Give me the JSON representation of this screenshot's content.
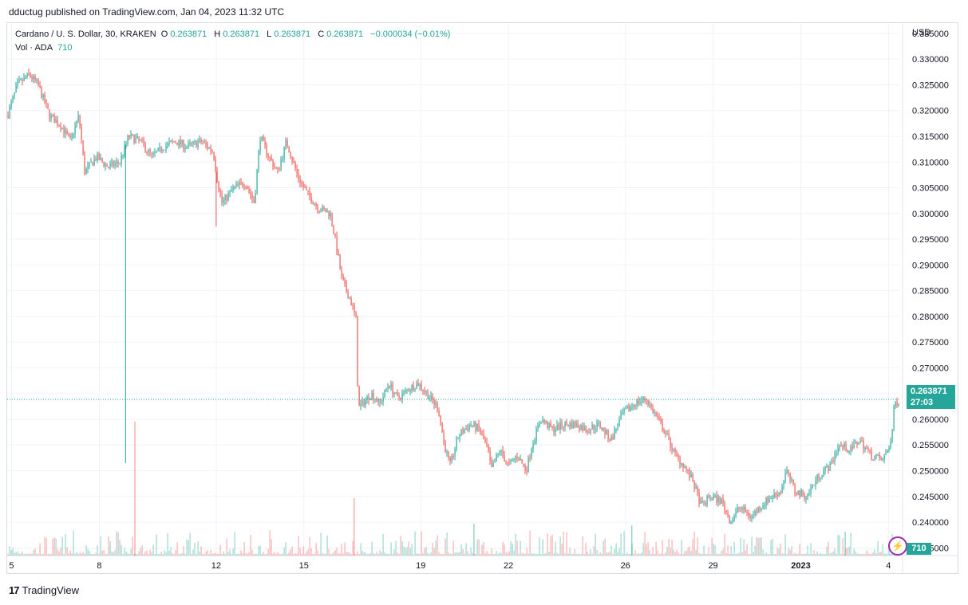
{
  "header": {
    "published_line": "dductug published on TradingView.com, Jan 04, 2023 11:32 UTC"
  },
  "legend": {
    "symbol": "Cardano / U. S. Dollar, 30, KRAKEN",
    "open_label": "O",
    "open": "0.263871",
    "high_label": "H",
    "high": "0.263871",
    "low_label": "L",
    "low": "0.263871",
    "close_label": "C",
    "close": "0.263871",
    "change": "−0.000034 (−0.01%)",
    "volume_label": "Vol · ADA",
    "volume": "710"
  },
  "axis": {
    "currency": "USD",
    "last_price": "0.263871",
    "countdown": "27:03",
    "volume_badge": "710"
  },
  "footer": {
    "brand": "TradingView",
    "logo_text": "17"
  },
  "colors": {
    "up": "#26a69a",
    "down": "#ef5350",
    "grid": "#f0f3fa",
    "badge": "#26a69a",
    "bolt": "#9c27b0"
  },
  "chart_data": {
    "type": "candlestick",
    "symbol": "ADA/USD",
    "interval": "30",
    "ylim": [
      0.2335,
      0.337
    ],
    "y_ticks": [
      "0.335000",
      "0.330000",
      "0.325000",
      "0.320000",
      "0.315000",
      "0.310000",
      "0.305000",
      "0.300000",
      "0.295000",
      "0.290000",
      "0.285000",
      "0.280000",
      "0.275000",
      "0.270000",
      "0.265000",
      "0.260000",
      "0.255000",
      "0.250000",
      "0.245000",
      "0.240000",
      "0.235000"
    ],
    "x_ticks": [
      {
        "label": "5",
        "day": 5
      },
      {
        "label": "8",
        "day": 8
      },
      {
        "label": "12",
        "day": 12
      },
      {
        "label": "15",
        "day": 15
      },
      {
        "label": "19",
        "day": 19
      },
      {
        "label": "22",
        "day": 22
      },
      {
        "label": "26",
        "day": 26
      },
      {
        "label": "29",
        "day": 29
      },
      {
        "label": "2023",
        "day": 32
      },
      {
        "label": "4",
        "day": 35
      }
    ],
    "x_range_days": [
      4.85,
      35.4
    ],
    "path": [
      [
        4.85,
        0.319
      ],
      [
        5.2,
        0.325
      ],
      [
        5.6,
        0.327
      ],
      [
        5.9,
        0.325
      ],
      [
        6.3,
        0.319
      ],
      [
        6.7,
        0.317
      ],
      [
        7.0,
        0.314
      ],
      [
        7.3,
        0.319
      ],
      [
        7.5,
        0.308
      ],
      [
        7.9,
        0.311
      ],
      [
        8.3,
        0.309
      ],
      [
        8.7,
        0.31
      ],
      [
        9.0,
        0.315
      ],
      [
        9.4,
        0.314
      ],
      [
        9.8,
        0.311
      ],
      [
        10.2,
        0.313
      ],
      [
        10.6,
        0.314
      ],
      [
        11.0,
        0.313
      ],
      [
        11.5,
        0.314
      ],
      [
        11.9,
        0.312
      ],
      [
        12.05,
        0.306
      ],
      [
        12.2,
        0.302
      ],
      [
        12.6,
        0.305
      ],
      [
        13.0,
        0.306
      ],
      [
        13.3,
        0.302
      ],
      [
        13.5,
        0.315
      ],
      [
        13.8,
        0.311
      ],
      [
        14.1,
        0.308
      ],
      [
        14.4,
        0.314
      ],
      [
        14.8,
        0.307
      ],
      [
        15.1,
        0.304
      ],
      [
        15.5,
        0.301
      ],
      [
        15.9,
        0.3
      ],
      [
        16.1,
        0.294
      ],
      [
        16.3,
        0.287
      ],
      [
        16.6,
        0.283
      ],
      [
        16.8,
        0.279
      ],
      [
        16.85,
        0.262
      ],
      [
        17.0,
        0.263
      ],
      [
        17.3,
        0.265
      ],
      [
        17.6,
        0.263
      ],
      [
        17.9,
        0.267
      ],
      [
        18.2,
        0.264
      ],
      [
        18.6,
        0.266
      ],
      [
        18.9,
        0.267
      ],
      [
        19.2,
        0.265
      ],
      [
        19.6,
        0.262
      ],
      [
        19.8,
        0.255
      ],
      [
        20.0,
        0.251
      ],
      [
        20.3,
        0.257
      ],
      [
        20.7,
        0.259
      ],
      [
        21.0,
        0.258
      ],
      [
        21.3,
        0.254
      ],
      [
        21.4,
        0.25
      ],
      [
        21.7,
        0.254
      ],
      [
        22.0,
        0.251
      ],
      [
        22.3,
        0.253
      ],
      [
        22.6,
        0.25
      ],
      [
        22.8,
        0.255
      ],
      [
        23.1,
        0.26
      ],
      [
        23.5,
        0.258
      ],
      [
        23.9,
        0.259
      ],
      [
        24.3,
        0.259
      ],
      [
        24.7,
        0.258
      ],
      [
        25.1,
        0.259
      ],
      [
        25.5,
        0.256
      ],
      [
        25.9,
        0.261
      ],
      [
        26.3,
        0.263
      ],
      [
        26.7,
        0.264
      ],
      [
        27.0,
        0.261
      ],
      [
        27.4,
        0.257
      ],
      [
        27.7,
        0.253
      ],
      [
        28.0,
        0.251
      ],
      [
        28.3,
        0.248
      ],
      [
        28.6,
        0.243
      ],
      [
        28.9,
        0.245
      ],
      [
        29.3,
        0.244
      ],
      [
        29.6,
        0.24
      ],
      [
        29.9,
        0.243
      ],
      [
        30.3,
        0.241
      ],
      [
        30.6,
        0.243
      ],
      [
        31.0,
        0.245
      ],
      [
        31.3,
        0.246
      ],
      [
        31.5,
        0.25
      ],
      [
        31.8,
        0.246
      ],
      [
        32.2,
        0.245
      ],
      [
        32.6,
        0.249
      ],
      [
        33.0,
        0.251
      ],
      [
        33.3,
        0.255
      ],
      [
        33.7,
        0.254
      ],
      [
        34.0,
        0.256
      ],
      [
        34.4,
        0.253
      ],
      [
        34.8,
        0.252
      ],
      [
        35.1,
        0.256
      ],
      [
        35.2,
        0.263
      ],
      [
        35.4,
        0.264
      ]
    ],
    "spikes": [
      {
        "day": 8.9,
        "high": 0.2515
      },
      {
        "day": 12.0,
        "low": 0.2975
      }
    ],
    "last_price_value": 0.263871
  }
}
